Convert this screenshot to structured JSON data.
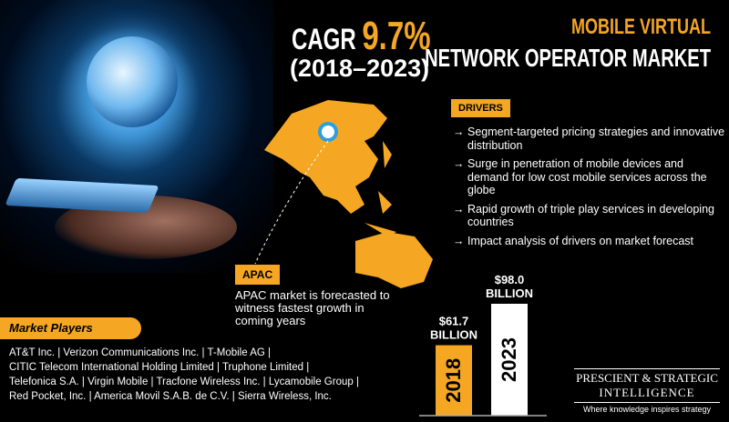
{
  "cagr": {
    "label": "CAGR",
    "value": "9.7%",
    "period": "(2018–2023)"
  },
  "title": {
    "line1": "MOBILE VIRTUAL",
    "line2": "NETWORK OPERATOR MARKET"
  },
  "drivers": {
    "label": "DRIVERS",
    "items": [
      "Segment-targeted pricing strategies and innovative distribution",
      "Surge in penetration of mobile devices and demand for low cost mobile services across the globe",
      "Rapid growth of triple play services in developing countries",
      "Impact analysis of drivers on market forecast"
    ]
  },
  "apac": {
    "label": "APAC",
    "text": "APAC market is forecasted to witness fastest growth in coming years"
  },
  "market_players": {
    "label": "Market Players",
    "lines": [
      "AT&T Inc. | Verizon Communications Inc. | T-Mobile AG |",
      "CITIC Telecom International Holding Limited | Truphone Limited |",
      "Telefonica S.A. | Virgin Mobile | Tracfone Wireless Inc. | Lycamobile Group |",
      "Red Pocket, Inc. | America Movil S.A.B. de C.V. | Sierra Wireless, Inc."
    ]
  },
  "logo": {
    "line1": "PRESCIENT & STRATEGIC",
    "line2": "INTELLIGENCE",
    "tagline": "Where knowledge inspires strategy"
  },
  "colors": {
    "accent": "#f5a623",
    "bar2018": "#f5a623",
    "bar2023": "#ffffff"
  },
  "chart_data": {
    "type": "bar",
    "categories": [
      "2018",
      "2023"
    ],
    "values": [
      61.7,
      98.0
    ],
    "data_labels": [
      [
        "$61.7",
        "BILLION"
      ],
      [
        "$98.0",
        "BILLION"
      ]
    ],
    "ylabel": "",
    "xlabel": ""
  }
}
